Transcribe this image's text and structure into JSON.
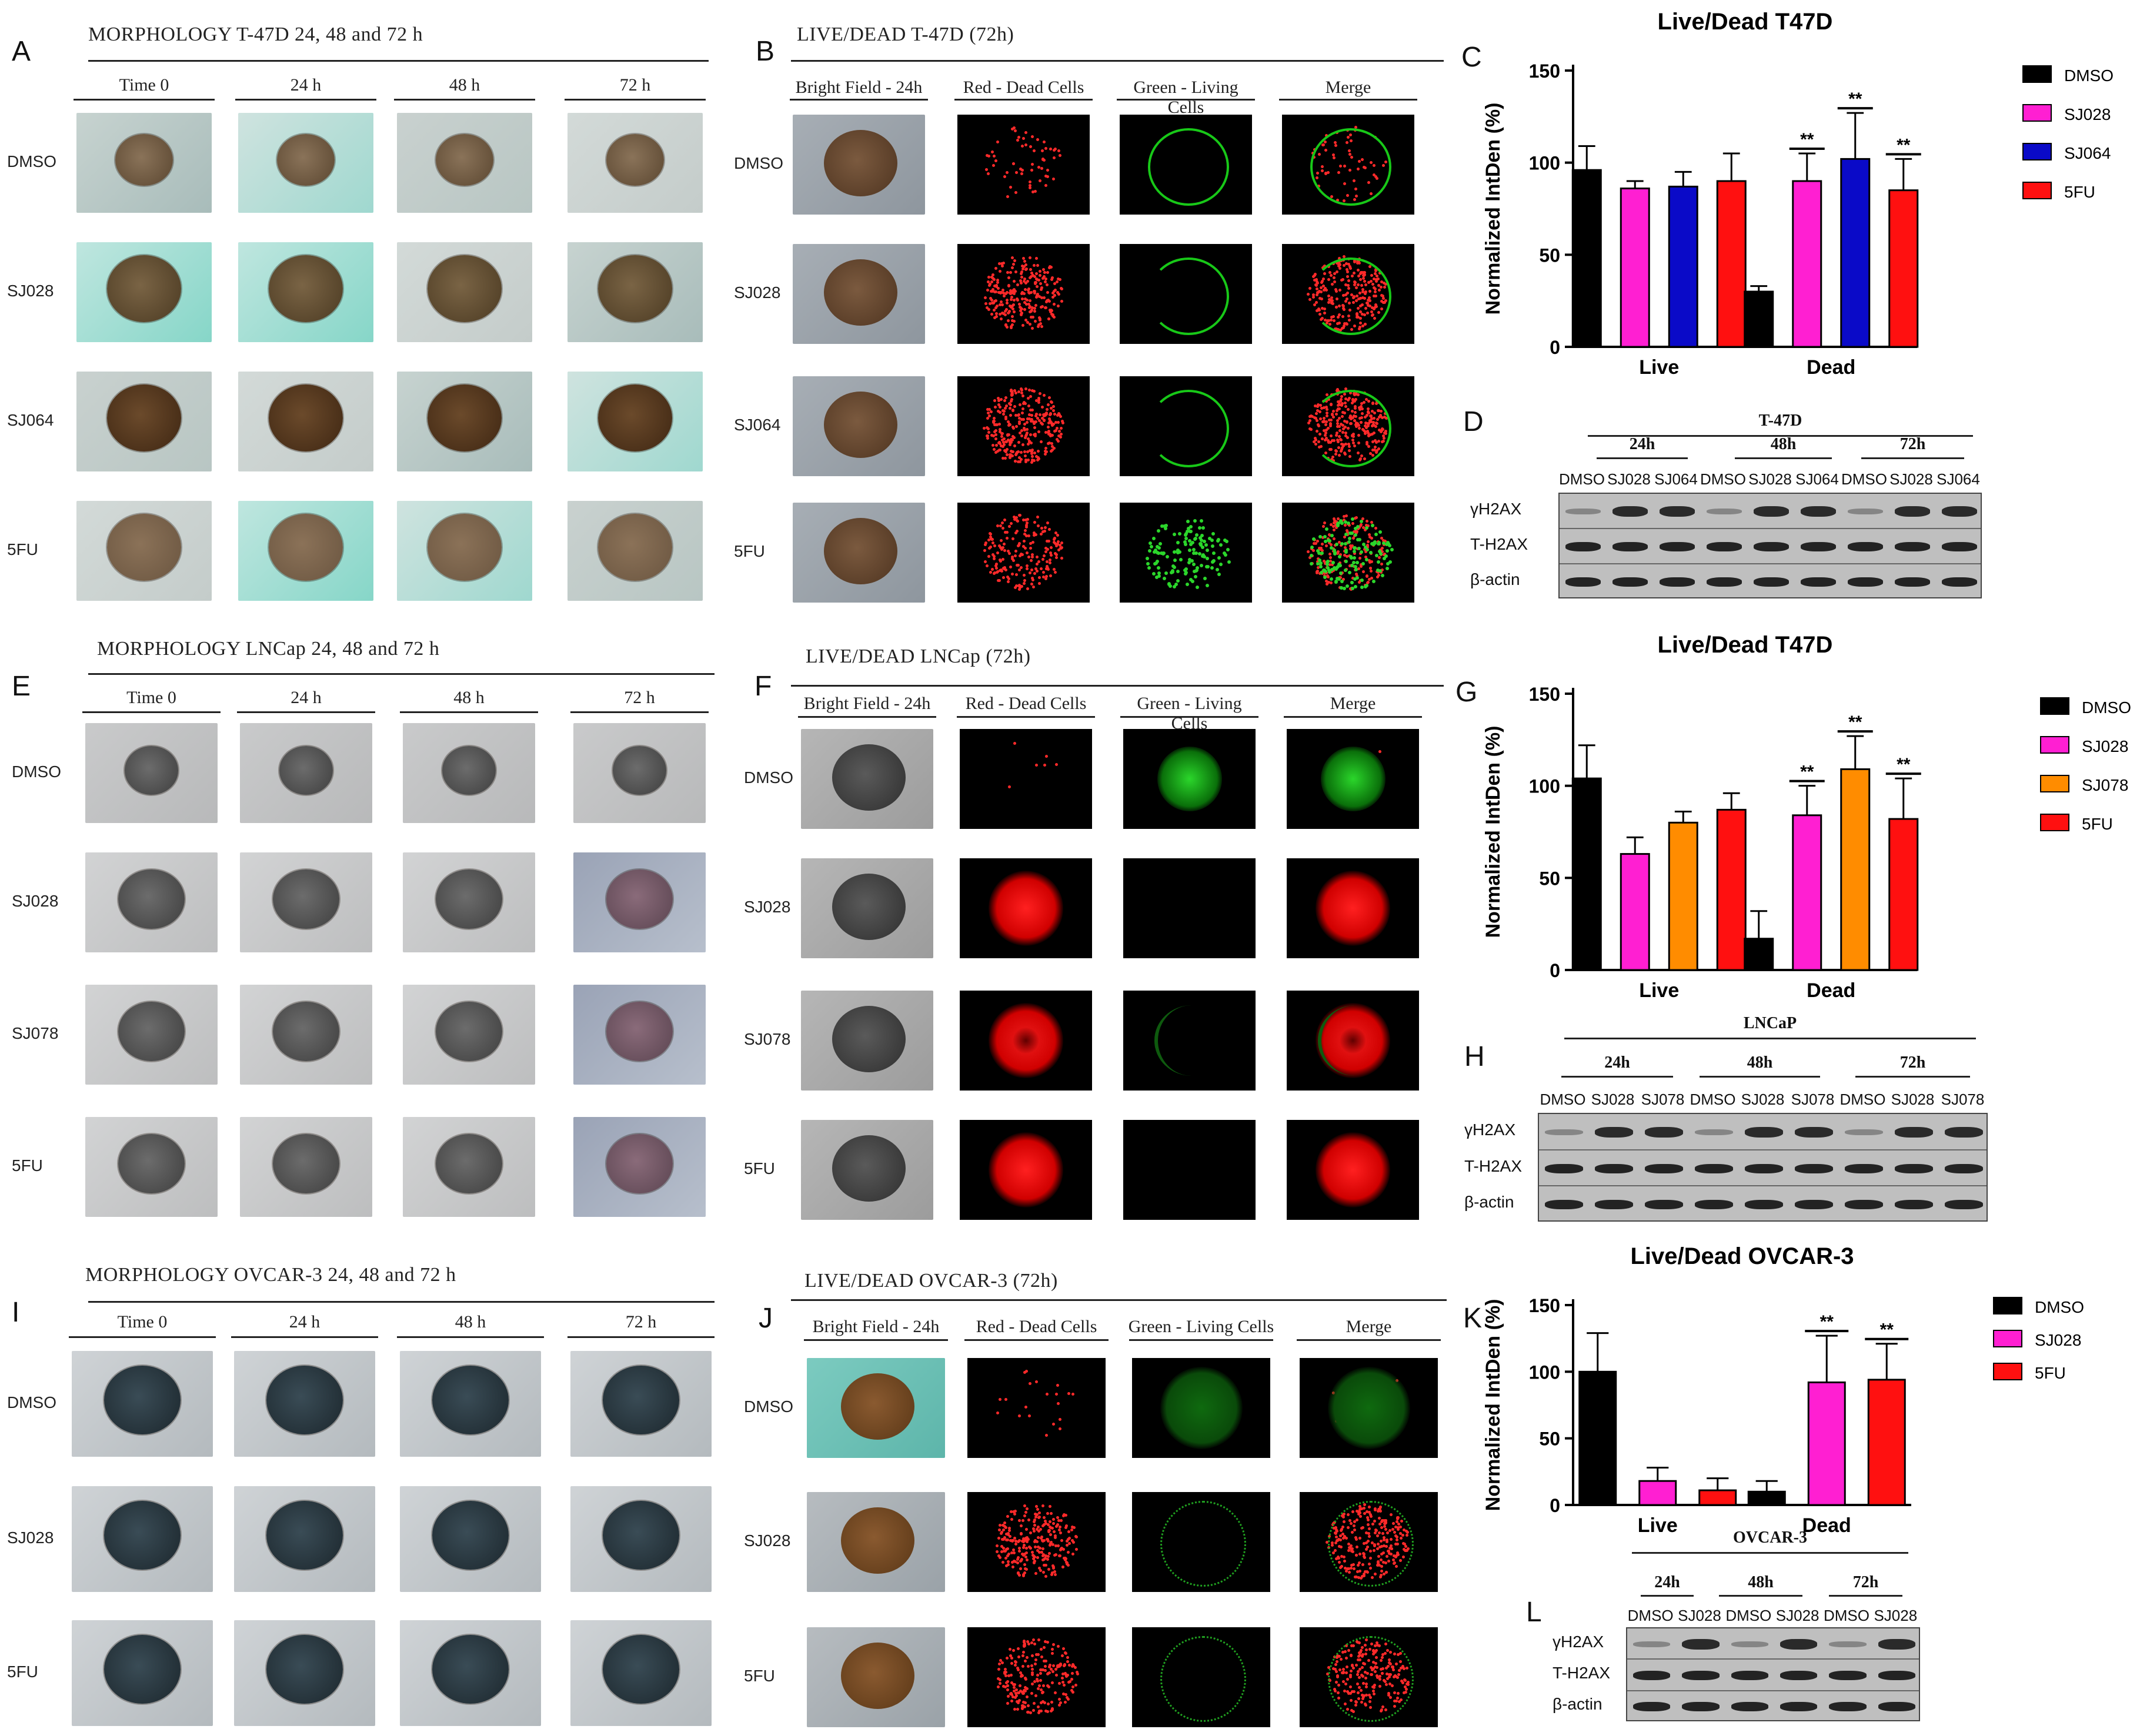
{
  "panels": {
    "A": {
      "letter": "A",
      "title": "MORPHOLOGY T-47D 24, 48 and 72 h",
      "cols": [
        "Time 0",
        "24 h",
        "48 h",
        "72 h"
      ],
      "rows": [
        "DMSO",
        "SJ028",
        "SJ064",
        "5FU"
      ]
    },
    "B": {
      "letter": "B",
      "title": "LIVE/DEAD T-47D (72h)",
      "cols": [
        "Bright Field - 24h",
        "Red - Dead Cells",
        "Green - Living Cells",
        "Merge"
      ],
      "rows": [
        "DMSO",
        "SJ028",
        "SJ064",
        "5FU"
      ]
    },
    "E": {
      "letter": "E",
      "title": "MORPHOLOGY LNCap 24, 48 and 72 h",
      "cols": [
        "Time 0",
        "24 h",
        "48 h",
        "72 h"
      ],
      "rows": [
        "DMSO",
        "SJ028",
        "SJ078",
        "5FU"
      ]
    },
    "F": {
      "letter": "F",
      "title": "LIVE/DEAD LNCap (72h)",
      "cols": [
        "Bright Field - 24h",
        "Red - Dead Cells",
        "Green - Living Cells",
        "Merge"
      ],
      "rows": [
        "DMSO",
        "SJ028",
        "SJ078",
        "5FU"
      ]
    },
    "I": {
      "letter": "I",
      "title": "MORPHOLOGY OVCAR-3 24, 48 and 72 h",
      "cols": [
        "Time 0",
        "24 h",
        "48 h",
        "72 h"
      ],
      "rows": [
        "DMSO",
        "SJ028",
        "5FU"
      ]
    },
    "J": {
      "letter": "J",
      "title": "LIVE/DEAD OVCAR-3 (72h)",
      "cols": [
        "Bright Field - 24h",
        "Red - Dead Cells",
        "Green - Living Cells",
        "Merge"
      ],
      "rows": [
        "DMSO",
        "SJ028",
        "5FU"
      ]
    },
    "C": {
      "letter": "C"
    },
    "G": {
      "letter": "G"
    },
    "K": {
      "letter": "K"
    },
    "D": {
      "letter": "D"
    },
    "H": {
      "letter": "H"
    },
    "L": {
      "letter": "L"
    }
  },
  "chart_data": [
    {
      "id": "C",
      "type": "bar",
      "title": "Live/Dead T47D",
      "ylabel": "Normalized IntDen (%)",
      "xlabel": "",
      "categories": [
        "Live",
        "Dead"
      ],
      "ylim": [
        0,
        150
      ],
      "yticks": [
        0,
        50,
        100,
        150
      ],
      "series": [
        {
          "name": "DMSO",
          "color": "#000000",
          "values": [
            96,
            30
          ],
          "err": [
            13,
            3
          ]
        },
        {
          "name": "SJ028",
          "color": "#ff1fd2",
          "values": [
            86,
            90
          ],
          "err": [
            4,
            15
          ]
        },
        {
          "name": "SJ064",
          "color": "#0a0ac8",
          "values": [
            87,
            102
          ],
          "err": [
            8,
            25
          ]
        },
        {
          "name": "5FU",
          "color": "#ff1010",
          "values": [
            90,
            85
          ],
          "err": [
            15,
            17
          ]
        }
      ],
      "significance": [
        "",
        "**",
        "**",
        "**"
      ],
      "legend": "right"
    },
    {
      "id": "G",
      "type": "bar",
      "title": "Live/Dead T47D",
      "ylabel": "Normalized IntDen (%)",
      "xlabel": "",
      "categories": [
        "Live",
        "Dead"
      ],
      "ylim": [
        0,
        150
      ],
      "yticks": [
        0,
        50,
        100,
        150
      ],
      "series": [
        {
          "name": "DMSO",
          "color": "#000000",
          "values": [
            104,
            17
          ],
          "err": [
            18,
            15
          ]
        },
        {
          "name": "SJ028",
          "color": "#ff1fd2",
          "values": [
            63,
            84
          ],
          "err": [
            9,
            16
          ]
        },
        {
          "name": "SJ078",
          "color": "#ff8c00",
          "values": [
            80,
            109
          ],
          "err": [
            6,
            18
          ]
        },
        {
          "name": "5FU",
          "color": "#ff1010",
          "values": [
            87,
            82
          ],
          "err": [
            9,
            22
          ]
        }
      ],
      "significance": [
        "",
        "**",
        "**",
        "**"
      ],
      "legend": "right"
    },
    {
      "id": "K",
      "type": "bar",
      "title": "Live/Dead OVCAR-3",
      "ylabel": "Normalized IntDen (%)",
      "xlabel": "",
      "categories": [
        "Live",
        "Dead"
      ],
      "ylim": [
        0,
        150
      ],
      "yticks": [
        0,
        50,
        100,
        150
      ],
      "series": [
        {
          "name": "DMSO",
          "color": "#000000",
          "values": [
            100,
            10
          ],
          "err": [
            29,
            8
          ]
        },
        {
          "name": "SJ028",
          "color": "#ff1fd2",
          "values": [
            18,
            92
          ],
          "err": [
            10,
            35
          ]
        },
        {
          "name": "5FU",
          "color": "#ff1010",
          "values": [
            11,
            94
          ],
          "err": [
            9,
            27
          ]
        }
      ],
      "significance": [
        "",
        "**",
        "**"
      ],
      "legend": "right"
    }
  ],
  "westerns": [
    {
      "id": "D",
      "cell": "T-47D",
      "timepoints": [
        "24h",
        "48h",
        "72h"
      ],
      "lanes": [
        "DMSO",
        "SJ028",
        "SJ064"
      ],
      "proteins": [
        "γH2AX",
        "T-H2AX",
        "β-actin"
      ]
    },
    {
      "id": "H",
      "cell": "LNCaP",
      "timepoints": [
        "24h",
        "48h",
        "72h"
      ],
      "lanes": [
        "DMSO",
        "SJ028",
        "SJ078"
      ],
      "proteins": [
        "γH2AX",
        "T-H2AX",
        "β-actin"
      ]
    },
    {
      "id": "L",
      "cell": "OVCAR-3",
      "timepoints": [
        "24h",
        "48h",
        "72h"
      ],
      "lanes": [
        "DMSO",
        "SJ028"
      ],
      "proteins": [
        "γH2AX",
        "T-H2AX",
        "β-actin"
      ]
    }
  ]
}
